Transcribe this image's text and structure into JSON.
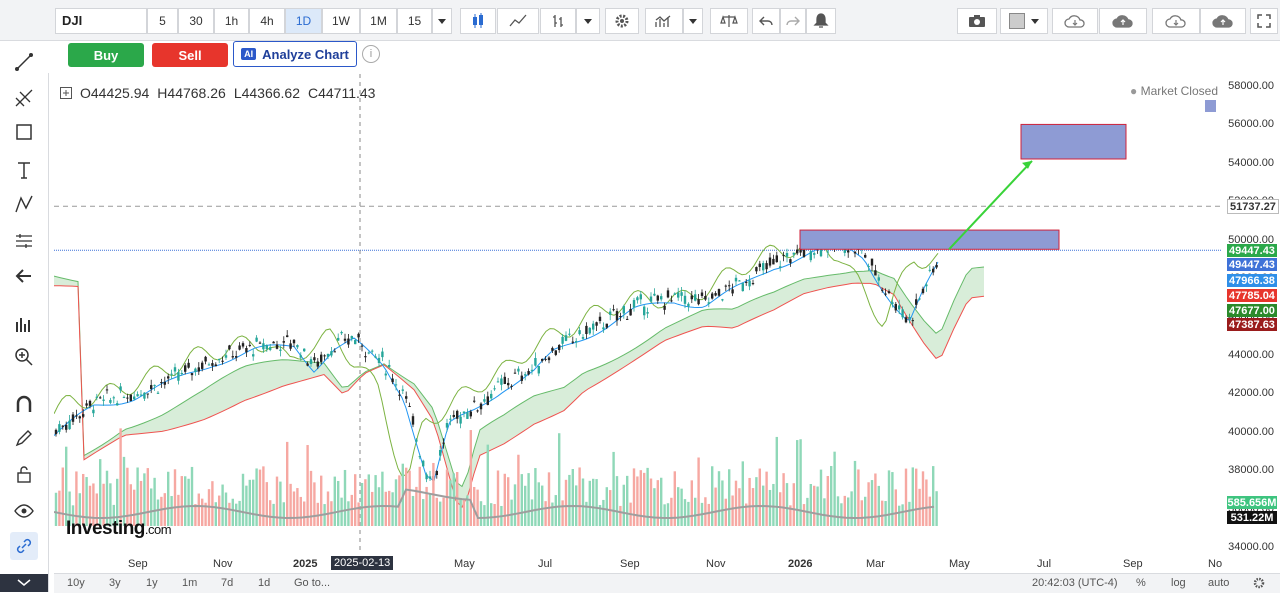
{
  "symbol": "DJI",
  "timeframes": [
    {
      "label": "5",
      "active": false
    },
    {
      "label": "30",
      "active": false
    },
    {
      "label": "1h",
      "active": false
    },
    {
      "label": "4h",
      "active": false
    },
    {
      "label": "1D",
      "active": true
    },
    {
      "label": "1W",
      "active": false
    },
    {
      "label": "1M",
      "active": false
    },
    {
      "label": "15",
      "active": false
    }
  ],
  "actions": {
    "buy": "Buy",
    "sell": "Sell",
    "analyze": "Analyze Chart",
    "ai_badge": "AI",
    "info": "i"
  },
  "ohlc": {
    "open": "O44425.94",
    "high": "H44768.26",
    "low": "L44366.62",
    "close": "C44711.43"
  },
  "market_status": "Market Closed",
  "logo": {
    "main": "Investing",
    "suffix": ".com"
  },
  "yaxis_ticks": [
    "58000.00",
    "56000.00",
    "54000.00",
    "52000.00",
    "50000.00",
    "48000.00",
    "46000.00",
    "44000.00",
    "42000.00",
    "40000.00",
    "38000.00",
    "36000.00",
    "34000.00"
  ],
  "price_labels": [
    {
      "value": "51737.27",
      "color": "#ffffff",
      "text": "#333333"
    },
    {
      "value": "49447.43",
      "color": "#2ba84a",
      "text": "#ffffff"
    },
    {
      "value": "49447.43",
      "color": "#3f72d8",
      "text": "#ffffff"
    },
    {
      "value": "47966.38",
      "color": "#2f8fe8",
      "text": "#ffffff"
    },
    {
      "value": "47785.04",
      "color": "#e7352c",
      "text": "#ffffff"
    },
    {
      "value": "47677.00",
      "color": "#2b8a2b",
      "text": "#ffffff"
    },
    {
      "value": "47387.63",
      "color": "#9a1c1c",
      "text": "#ffffff"
    },
    {
      "value": "585.656M",
      "color": "#3ec47f",
      "text": "#ffffff"
    },
    {
      "value": "531.22M",
      "color": "#111111",
      "text": "#ffffff"
    }
  ],
  "xaxis_labels": [
    "Sep",
    "Nov",
    "2025",
    "2025-02-13",
    "May",
    "Jul",
    "Sep",
    "Nov",
    "2026",
    "Mar",
    "May",
    "Jul",
    "Sep",
    "No"
  ],
  "bottom_ranges": [
    "10y",
    "3y",
    "1y",
    "1m",
    "7d",
    "1d",
    "Go to..."
  ],
  "bottom_right": {
    "time": "20:42:03 (UTC-4)",
    "percent": "%",
    "log": "log",
    "auto": "auto"
  },
  "colors": {
    "up": "#26a69a",
    "down": "#ef5350",
    "cloud_up": "#a5d6a7",
    "cloud_down": "#ef9a9a",
    "target_box": "#8e9bd4",
    "arrow": "#39d339"
  }
}
